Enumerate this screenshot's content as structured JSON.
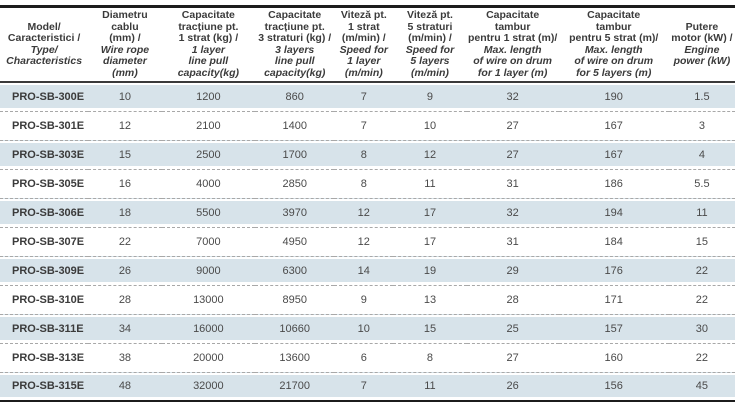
{
  "table": {
    "columns": [
      {
        "ro": "Model/\nCaracteristici /",
        "en": "Type/\nCharacteristics"
      },
      {
        "ro": "Diametru cablu\n(mm) /",
        "en": "Wire rope\ndiameter (mm)"
      },
      {
        "ro": "Capacitate\ntracțiune pt.\n1 strat (kg) /",
        "en": "1 layer\nline pull\ncapacity(kg)"
      },
      {
        "ro": "Capacitate\ntracțiune pt.\n3 straturi (kg) /",
        "en": "3 layers\nline pull\ncapacity(kg)"
      },
      {
        "ro": "Viteză pt.\n1 strat\n(m/min) /",
        "en": "Speed for\n1 layer\n(m/min)"
      },
      {
        "ro": "Viteză pt.\n5 straturi\n(m/min) /",
        "en": "Speed for\n5 layers\n(m/min)"
      },
      {
        "ro": "Capacitate\ntambur\npentru 1 strat (m)/",
        "en": "Max. length\nof wire on drum\nfor 1 layer (m)"
      },
      {
        "ro": "Capacitate\ntambur\npentru 5 strat (m)/",
        "en": "Max. length\nof wire on drum\nfor 5 layers (m)"
      },
      {
        "ro": "Putere\nmotor (kW) /",
        "en": "Engine\npower (kW)"
      }
    ],
    "col_widths_pct": [
      12,
      10,
      12.7,
      10.8,
      8,
      10,
      12.5,
      15,
      9
    ],
    "rows": [
      {
        "model": "PRO-SB-300E",
        "values": [
          "10",
          "1200",
          "860",
          "7",
          "9",
          "32",
          "190",
          "1.5"
        ],
        "shaded": true
      },
      {
        "model": "PRO-SB-301E",
        "values": [
          "12",
          "2100",
          "1400",
          "7",
          "10",
          "27",
          "167",
          "3"
        ],
        "shaded": false
      },
      {
        "model": "PRO-SB-303E",
        "values": [
          "15",
          "2500",
          "1700",
          "8",
          "12",
          "27",
          "167",
          "4"
        ],
        "shaded": true
      },
      {
        "model": "PRO-SB-305E",
        "values": [
          "16",
          "4000",
          "2850",
          "8",
          "11",
          "31",
          "186",
          "5.5"
        ],
        "shaded": false
      },
      {
        "model": "PRO-SB-306E",
        "values": [
          "18",
          "5500",
          "3970",
          "12",
          "17",
          "32",
          "194",
          "11"
        ],
        "shaded": true
      },
      {
        "model": "PRO-SB-307E",
        "values": [
          "22",
          "7000",
          "4950",
          "12",
          "17",
          "31",
          "184",
          "15"
        ],
        "shaded": false
      },
      {
        "model": "PRO-SB-309E",
        "values": [
          "26",
          "9000",
          "6300",
          "14",
          "19",
          "29",
          "176",
          "22"
        ],
        "shaded": true
      },
      {
        "model": "PRO-SB-310E",
        "values": [
          "28",
          "13000",
          "8950",
          "9",
          "13",
          "28",
          "171",
          "22"
        ],
        "shaded": false
      },
      {
        "model": "PRO-SB-311E",
        "values": [
          "34",
          "16000",
          "10660",
          "10",
          "15",
          "25",
          "157",
          "30"
        ],
        "shaded": true
      },
      {
        "model": "PRO-SB-313E",
        "values": [
          "38",
          "20000",
          "13600",
          "6",
          "8",
          "27",
          "160",
          "22"
        ],
        "shaded": false
      },
      {
        "model": "PRO-SB-315E",
        "values": [
          "48",
          "32000",
          "21700",
          "7",
          "11",
          "26",
          "156",
          "45"
        ],
        "shaded": true
      }
    ]
  },
  "colors": {
    "row_shaded": "#d7e3ea",
    "border_dark": "#1c1c1c",
    "header_rule": "#3a3a3a",
    "dashed_separator": "#a8a8a8",
    "header_text": "#3b3b3b",
    "cell_text": "#4a4a4a"
  }
}
